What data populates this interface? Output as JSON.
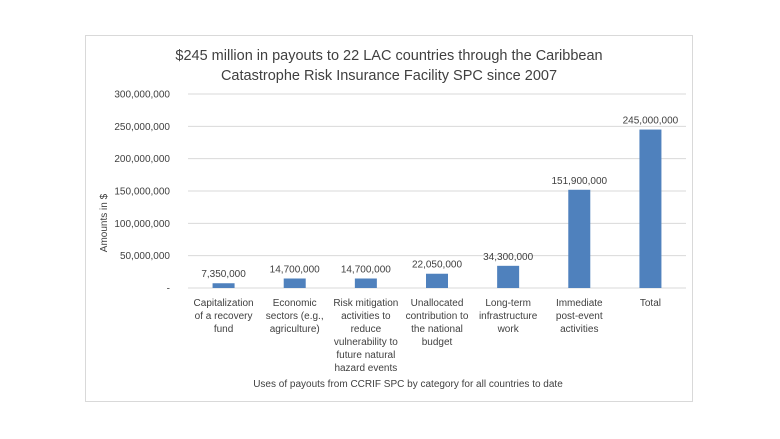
{
  "chart_data": {
    "type": "bar",
    "title_lines": [
      "$245 million in payouts to 22 LAC countries through the Caribbean",
      "Catastrophe Risk Insurance Facility SPC since 2007"
    ],
    "xlabel": "Uses of payouts from CCRIF SPC by category for all countries to date",
    "ylabel": "Amounts in $",
    "ylim": [
      0,
      300000000
    ],
    "y_ticks": [
      {
        "value": 0,
        "label": "-"
      },
      {
        "value": 50000000,
        "label": "50,000,000"
      },
      {
        "value": 100000000,
        "label": "100,000,000"
      },
      {
        "value": 150000000,
        "label": "150,000,000"
      },
      {
        "value": 200000000,
        "label": "200,000,000"
      },
      {
        "value": 250000000,
        "label": "250,000,000"
      },
      {
        "value": 300000000,
        "label": "300,000,000"
      }
    ],
    "categories": [
      [
        "Capitalization",
        "of a recovery",
        "fund"
      ],
      [
        "Economic",
        "sectors (e.g.,",
        "agriculture)"
      ],
      [
        "Risk mitigation",
        "activities to",
        "reduce",
        "vulnerability to",
        "future natural",
        "hazard events"
      ],
      [
        "Unallocated",
        "contribution to",
        "the national",
        "budget"
      ],
      [
        "Long-term",
        "infrastructure",
        "work"
      ],
      [
        "Immediate",
        "post-event",
        "activities"
      ],
      [
        "Total"
      ]
    ],
    "values": [
      7350000,
      14700000,
      14700000,
      22050000,
      34300000,
      151900000,
      245000000
    ],
    "data_labels": [
      "7,350,000",
      "14,700,000",
      "14,700,000",
      "22,050,000",
      "34,300,000",
      "151,900,000",
      "245,000,000"
    ],
    "grid": true,
    "bar_color": "#4f81bd",
    "grid_color": "#d9d9d9"
  }
}
